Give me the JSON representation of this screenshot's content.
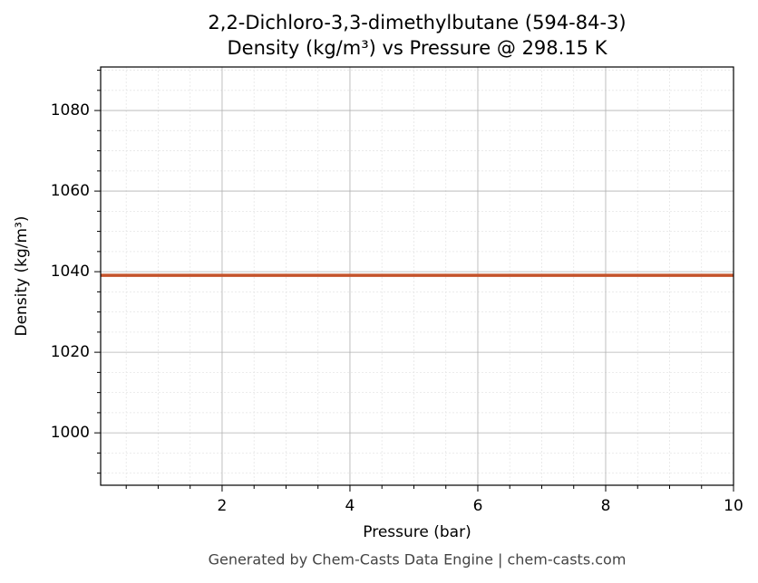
{
  "chart_data": {
    "type": "line",
    "title": "2,2-Dichloro-3,3-dimethylbutane (594-84-3)",
    "subtitle": "Density (kg/m³) vs Pressure @ 298.15 K",
    "x_label": "Pressure (bar)",
    "y_label": "Density (kg/m³)",
    "footer": "Generated by Chem-Casts Data Engine | chem-casts.com",
    "x": [
      0.1,
      10
    ],
    "series": [
      {
        "name": "Density",
        "color": "#c4532b",
        "values": [
          1039.1,
          1039.1
        ]
      }
    ],
    "xlim": [
      0.1,
      10
    ],
    "xticks": [
      2,
      4,
      6,
      8,
      10
    ],
    "xminorticks": [
      0.5,
      1,
      1.5,
      2.5,
      3,
      3.5,
      4.5,
      5,
      5.5,
      6.5,
      7,
      7.5,
      8.5,
      9,
      9.5
    ],
    "ylim": [
      987,
      1090.8
    ],
    "yticks": [
      1000,
      1020,
      1040,
      1060,
      1080
    ],
    "yminorticks": [
      990,
      995,
      1005,
      1010,
      1015,
      1025,
      1030,
      1035,
      1045,
      1050,
      1055,
      1065,
      1070,
      1075,
      1085,
      1090
    ],
    "grid": true,
    "minor_grid": true
  }
}
